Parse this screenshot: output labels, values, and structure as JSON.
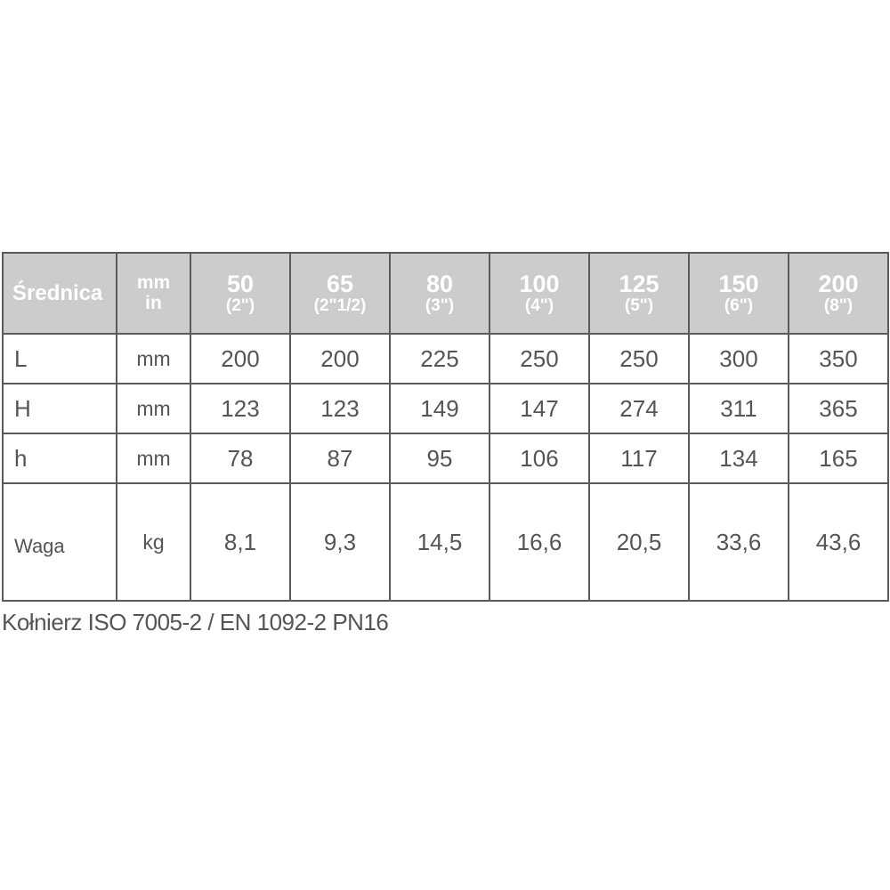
{
  "table": {
    "header": {
      "label": "Średnica",
      "unit_top": "mm",
      "unit_bottom": "in",
      "sizes": [
        {
          "mm": "50",
          "in": "(2\")"
        },
        {
          "mm": "65",
          "in": "(2\"1/2)"
        },
        {
          "mm": "80",
          "in": "(3\")"
        },
        {
          "mm": "100",
          "in": "(4\")"
        },
        {
          "mm": "125",
          "in": "(5\")"
        },
        {
          "mm": "150",
          "in": "(6\")"
        },
        {
          "mm": "200",
          "in": "(8\")"
        }
      ]
    },
    "rows": [
      {
        "label": "L",
        "unit": "mm",
        "values": [
          "200",
          "200",
          "225",
          "250",
          "250",
          "300",
          "350"
        ]
      },
      {
        "label": "H",
        "unit": "mm",
        "values": [
          "123",
          "123",
          "149",
          "147",
          "274",
          "311",
          "365"
        ]
      },
      {
        "label": "h",
        "unit": "mm",
        "values": [
          "78",
          "87",
          "95",
          "106",
          "117",
          "134",
          "165"
        ]
      },
      {
        "label": "Waga",
        "unit": "kg",
        "values": [
          "8,1",
          "9,3",
          "14,5",
          "16,6",
          "20,5",
          "33,6",
          "43,6"
        ]
      }
    ]
  },
  "caption": "Kołnierz ISO 7005-2 / EN 1092-2 PN16",
  "colors": {
    "header_bg": "#cccccc",
    "border": "#5a5a5a",
    "text": "#555555"
  }
}
